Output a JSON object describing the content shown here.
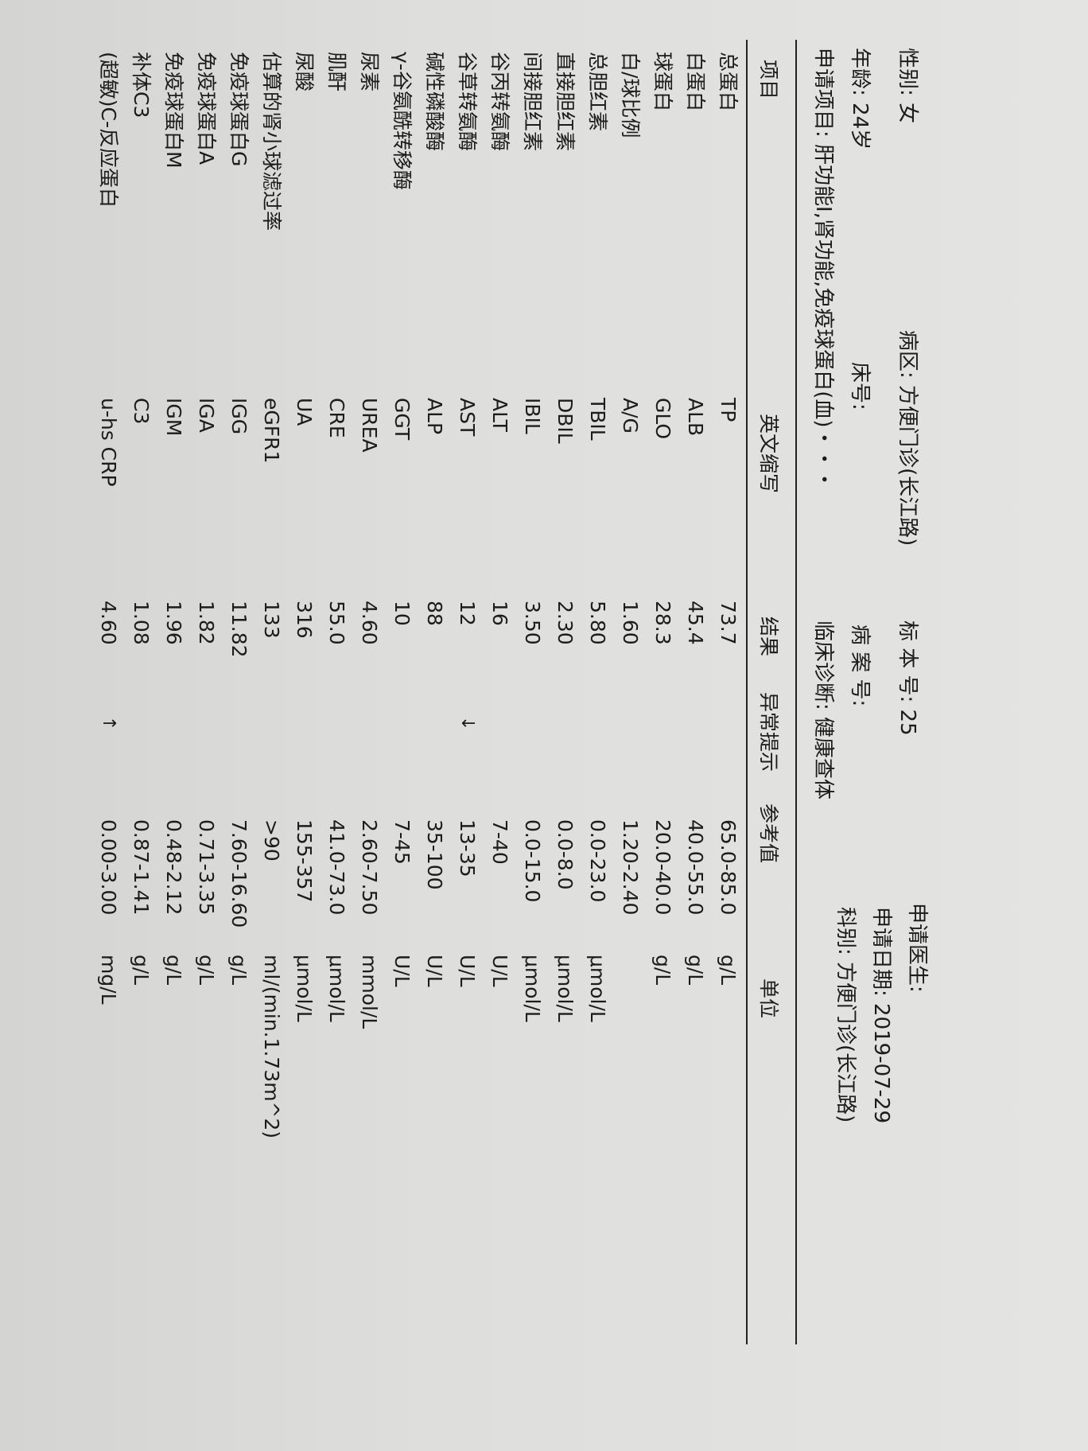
{
  "header": {
    "gender": "性别: 女",
    "ward": "病区: 方便门诊(长江路)",
    "specimen_no": "标 本 号: 25",
    "doctor": "申请医生:",
    "age": "年龄: 24岁",
    "bed": "床号:",
    "case_no": "病 案 号:",
    "request_date": "申请日期: 2019-07-29",
    "items": "申请项目: 肝功能Ⅰ,肾功能,免疫球蛋白(血)・・・",
    "diagnosis": "临床诊断: 健康查体",
    "department": "科别: 方便门诊(长江路)"
  },
  "columns": {
    "name": "项目",
    "abbr": "英文缩写",
    "result": "结果",
    "flag": "异常提示",
    "ref": "参考值",
    "unit": "单位"
  },
  "rows": [
    {
      "name": "总蛋白",
      "abbr": "TP",
      "result": "73.7",
      "flag": "",
      "ref": "65.0-85.0",
      "unit": "g/L"
    },
    {
      "name": "白蛋白",
      "abbr": "ALB",
      "result": "45.4",
      "flag": "",
      "ref": "40.0-55.0",
      "unit": "g/L"
    },
    {
      "name": "球蛋白",
      "abbr": "GLO",
      "result": "28.3",
      "flag": "",
      "ref": "20.0-40.0",
      "unit": "g/L"
    },
    {
      "name": "白/球比例",
      "abbr": "A/G",
      "result": "1.60",
      "flag": "",
      "ref": "1.20-2.40",
      "unit": ""
    },
    {
      "name": "总胆红素",
      "abbr": "TBIL",
      "result": "5.80",
      "flag": "",
      "ref": "0.0-23.0",
      "unit": "μmol/L"
    },
    {
      "name": "直接胆红素",
      "abbr": "DBIL",
      "result": "2.30",
      "flag": "",
      "ref": "0.0-8.0",
      "unit": "μmol/L"
    },
    {
      "name": "间接胆红素",
      "abbr": "IBIL",
      "result": "3.50",
      "flag": "",
      "ref": "0.0-15.0",
      "unit": "μmol/L"
    },
    {
      "name": "谷丙转氨酶",
      "abbr": "ALT",
      "result": "16",
      "flag": "",
      "ref": "7-40",
      "unit": "U/L"
    },
    {
      "name": "谷草转氨酶",
      "abbr": "AST",
      "result": "12",
      "flag": "↓",
      "ref": "13-35",
      "unit": "U/L"
    },
    {
      "name": "碱性磷酸酶",
      "abbr": "ALP",
      "result": "88",
      "flag": "",
      "ref": "35-100",
      "unit": "U/L"
    },
    {
      "name": "γ-谷氨酰转移酶",
      "abbr": "GGT",
      "result": "10",
      "flag": "",
      "ref": "7-45",
      "unit": "U/L"
    },
    {
      "name": "尿素",
      "abbr": "UREA",
      "result": "4.60",
      "flag": "",
      "ref": "2.60-7.50",
      "unit": "mmol/L"
    },
    {
      "name": "肌酐",
      "abbr": "CRE",
      "result": "55.0",
      "flag": "",
      "ref": "41.0-73.0",
      "unit": "μmol/L"
    },
    {
      "name": "尿酸",
      "abbr": "UA",
      "result": "316",
      "flag": "",
      "ref": "155-357",
      "unit": "μmol/L"
    },
    {
      "name": "估算的肾小球滤过率",
      "abbr": "eGFR1",
      "result": "133",
      "flag": "",
      "ref": ">90",
      "unit": "ml/(min.1.73m^2)"
    },
    {
      "name": "免疫球蛋白G",
      "abbr": "IGG",
      "result": "11.82",
      "flag": "",
      "ref": "7.60-16.60",
      "unit": "g/L"
    },
    {
      "name": "免疫球蛋白A",
      "abbr": "IGA",
      "result": "1.82",
      "flag": "",
      "ref": "0.71-3.35",
      "unit": "g/L"
    },
    {
      "name": "免疫球蛋白M",
      "abbr": "IGM",
      "result": "1.96",
      "flag": "",
      "ref": "0.48-2.12",
      "unit": "g/L"
    },
    {
      "name": "补体C3",
      "abbr": "C3",
      "result": "1.08",
      "flag": "",
      "ref": "0.87-1.41",
      "unit": "g/L"
    },
    {
      "name": "(超敏)C-反应蛋白",
      "abbr": "u-hs CRP",
      "result": "4.60",
      "flag": "↑",
      "ref": "0.00-3.00",
      "unit": "mg/L"
    }
  ]
}
